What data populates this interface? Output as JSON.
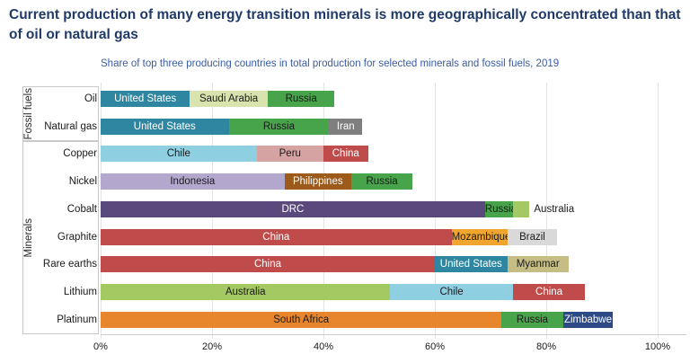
{
  "header": {
    "title": "Current production of many energy transition minerals is more geographically concentrated than that of oil or natural gas",
    "subtitle": "Share of top three producing countries in total production for selected minerals and fossil fuels, 2019"
  },
  "accent_colors": {
    "title_text": "#1f3a68",
    "subtitle_text": "#3a5ca8",
    "gridline": "#e4e4e4",
    "group_box_border": "#c9c9c9"
  },
  "colors": {
    "United States": {
      "bg": "#2e86a0",
      "text": "#ffffff"
    },
    "Saudi Arabia": {
      "bg": "#d9e3ae",
      "text": "#1a1a1a"
    },
    "Russia": {
      "bg": "#48a44a",
      "text": "#1a1a1a"
    },
    "Iran": {
      "bg": "#7f7f7f",
      "text": "#ffffff"
    },
    "Chile": {
      "bg": "#8fcfe2",
      "text": "#1a1a1a"
    },
    "Peru": {
      "bg": "#d5a3a1",
      "text": "#1a1a1a"
    },
    "China": {
      "bg": "#c04b4b",
      "text": "#ffffff"
    },
    "Indonesia": {
      "bg": "#b4a7ce",
      "text": "#1a1a1a"
    },
    "Philippines": {
      "bg": "#9c5a1b",
      "text": "#ffffff"
    },
    "DRC": {
      "bg": "#5a497c",
      "text": "#ffffff"
    },
    "Australia": {
      "bg": "#a4c963",
      "text": "#1a1a1a"
    },
    "Mozambique": {
      "bg": "#f0a52f",
      "text": "#1a1a1a"
    },
    "Brazil": {
      "bg": "#d9d9d9",
      "text": "#1a1a1a"
    },
    "Myanmar": {
      "bg": "#c6bd85",
      "text": "#1a1a1a"
    },
    "South Africa": {
      "bg": "#e8862e",
      "text": "#1a1a1a"
    },
    "Zimbabwe": {
      "bg": "#2b4a86",
      "text": "#ffffff"
    }
  },
  "chart_data": {
    "type": "bar",
    "orientation": "horizontal_stacked",
    "title": "Share of top three producing countries in total production for selected minerals and fossil fuels, 2019",
    "xlabel": "",
    "ylabel": "",
    "xlim": [
      0,
      100
    ],
    "x_tick_labels": [
      "0%",
      "20%",
      "40%",
      "60%",
      "80%",
      "100%"
    ],
    "grid": "vertical",
    "legend": "country labels printed on bar segments",
    "groups": [
      {
        "label": "Fossil fuels"
      },
      {
        "label": "Minerals"
      }
    ],
    "rows": [
      {
        "category": "Oil",
        "group": "Fossil fuels",
        "segments": [
          {
            "country": "United States",
            "share": 16
          },
          {
            "country": "Saudi Arabia",
            "share": 14
          },
          {
            "country": "Russia",
            "share": 12
          }
        ]
      },
      {
        "category": "Natural gas",
        "group": "Fossil fuels",
        "segments": [
          {
            "country": "United States",
            "share": 23
          },
          {
            "country": "Russia",
            "share": 18
          },
          {
            "country": "Iran",
            "share": 6
          }
        ]
      },
      {
        "category": "Copper",
        "group": "Minerals",
        "segments": [
          {
            "country": "Chile",
            "share": 28
          },
          {
            "country": "Peru",
            "share": 12
          },
          {
            "country": "China",
            "share": 8
          }
        ]
      },
      {
        "category": "Nickel",
        "group": "Minerals",
        "segments": [
          {
            "country": "Indonesia",
            "share": 33
          },
          {
            "country": "Philippines",
            "share": 12
          },
          {
            "country": "Russia",
            "share": 11
          }
        ]
      },
      {
        "category": "Cobalt",
        "group": "Minerals",
        "segments": [
          {
            "country": "DRC",
            "share": 69
          },
          {
            "country": "Russia",
            "share": 5
          },
          {
            "country": "Australia",
            "share": 3,
            "label_outside": true
          }
        ]
      },
      {
        "category": "Graphite",
        "group": "Minerals",
        "segments": [
          {
            "country": "China",
            "share": 63
          },
          {
            "country": "Mozambique",
            "share": 10
          },
          {
            "country": "Brazil",
            "share": 9
          }
        ]
      },
      {
        "category": "Rare earths",
        "group": "Minerals",
        "segments": [
          {
            "country": "China",
            "share": 60
          },
          {
            "country": "United States",
            "share": 13
          },
          {
            "country": "Myanmar",
            "share": 11
          }
        ]
      },
      {
        "category": "Lithium",
        "group": "Minerals",
        "segments": [
          {
            "country": "Australia",
            "share": 52
          },
          {
            "country": "Chile",
            "share": 22
          },
          {
            "country": "China",
            "share": 13
          }
        ]
      },
      {
        "category": "Platinum",
        "group": "Minerals",
        "segments": [
          {
            "country": "South Africa",
            "share": 72
          },
          {
            "country": "Russia",
            "share": 11
          },
          {
            "country": "Zimbabwe",
            "share": 9
          }
        ]
      }
    ]
  }
}
